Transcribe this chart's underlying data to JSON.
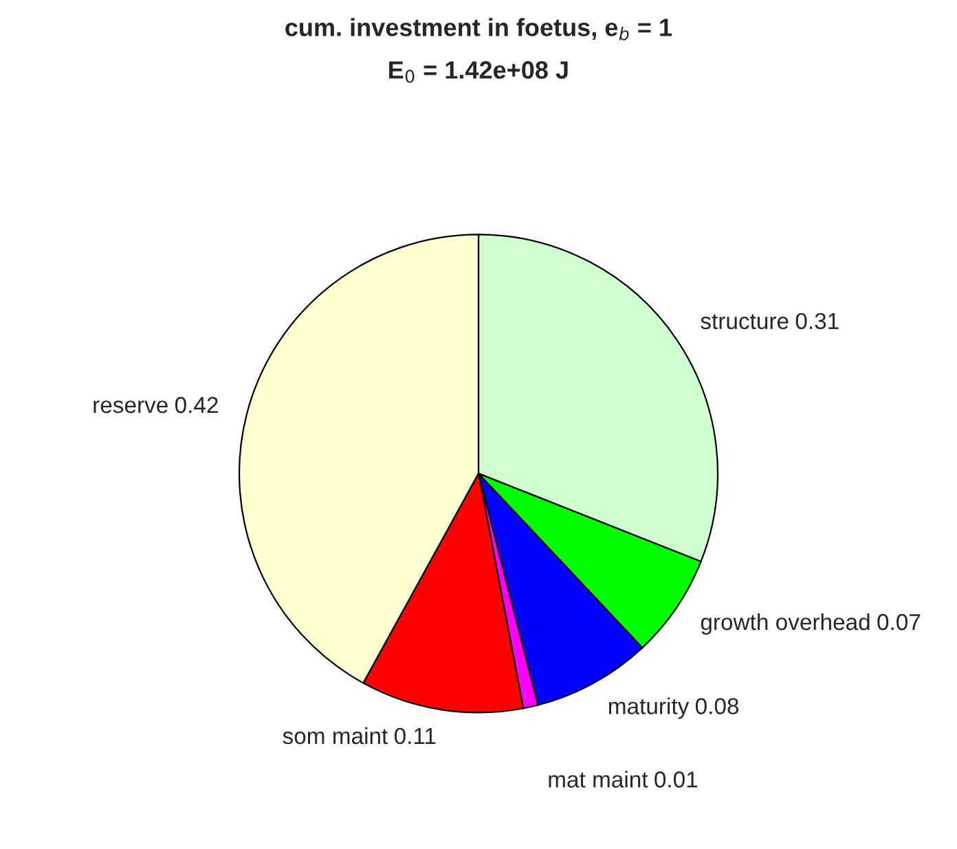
{
  "chart_data": {
    "type": "pie",
    "title": "cum. investment in foetus, e$_{b}$ = 1",
    "subtitle": "E$_{0}$ = 1.42e+08 J",
    "categories": [
      "structure",
      "growth overhead",
      "maturity",
      "mat maint",
      "som maint",
      "reserve"
    ],
    "values": [
      0.31,
      0.07,
      0.08,
      0.01,
      0.11,
      0.42
    ],
    "colors": [
      "#d0ffd0",
      "#00ff00",
      "#0000ff",
      "#ff00ff",
      "#ff0000",
      "#ffffd0"
    ],
    "data_labels": true
  }
}
